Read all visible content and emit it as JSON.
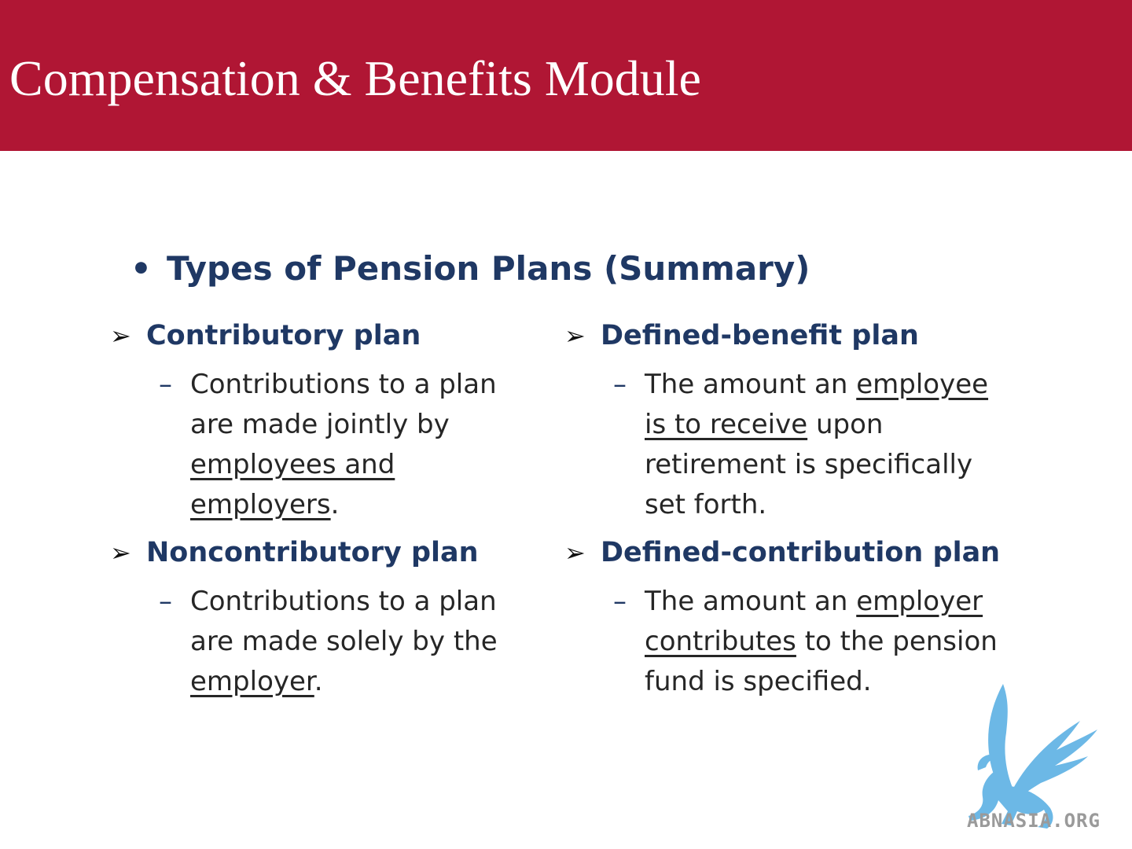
{
  "header": {
    "title": "Compensation & Benefits Module",
    "color": "#b01634"
  },
  "section": {
    "bullet": "•",
    "title": "Types of Pension Plans (Summary)"
  },
  "plans": [
    {
      "arrow": "➢",
      "title": "Contributory plan",
      "dash": "–",
      "desc": [
        "Contributions to a plan",
        "are made jointly by",
        "employees and",
        "employers",
        "."
      ]
    },
    {
      "arrow": "➢",
      "title": "Noncontributory plan",
      "dash": "–",
      "desc": [
        "Contributions to a plan",
        "are made solely by the",
        "employer",
        "."
      ]
    },
    {
      "arrow": "➢",
      "title": "Defined-benefit plan",
      "dash": "–",
      "desc": [
        "The amount an ",
        "employee",
        "is to receive",
        " upon",
        "retirement is specifically",
        "set forth."
      ]
    },
    {
      "arrow": "➢",
      "title": "Defined-contribution plan",
      "dash": "–",
      "desc": [
        "The amount an ",
        "employer",
        "contributes",
        " to the pension",
        "fund is specified."
      ]
    }
  ],
  "logo": {
    "text": "ABNASIA.ORG",
    "icon": "griffin-logo-icon",
    "color": "#6cb8e6"
  }
}
